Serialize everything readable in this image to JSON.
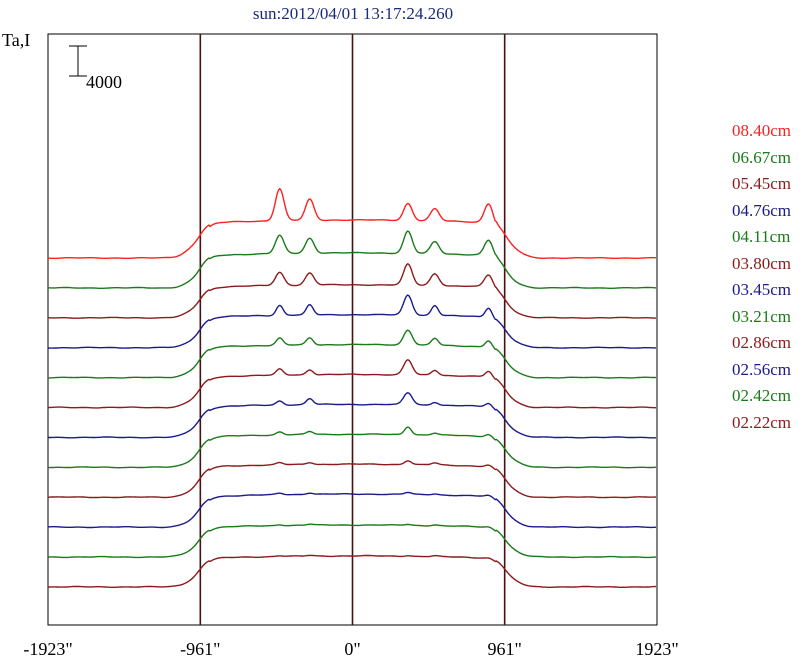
{
  "title": "sun:2012/04/01 13:17:24.260",
  "ylabel": "Ta,I",
  "chart_data": {
    "type": "line",
    "title": "sun:2012/04/01 13:17:24.260",
    "ylabel": "Ta,I",
    "x_ticks": [
      "-1923\"",
      "-961\"",
      "0\"",
      "961\"",
      "1923\""
    ],
    "x_tick_values": [
      -1923,
      -961,
      0,
      961,
      1923
    ],
    "xlim": [
      -1923,
      1923
    ],
    "scale_bar_label": "4000",
    "scale_bar_value": 4000,
    "vertical_lines_at": [
      -961,
      0,
      961
    ],
    "grid": false,
    "legend_position": "right",
    "series": [
      {
        "name": "08.40cm",
        "color": "#ff2020",
        "baseline_I": 3867,
        "limb_I": 1067,
        "disk_I": 5067,
        "peaks": [
          {
            "x": -460,
            "I": 4267
          },
          {
            "x": -270,
            "I": 2800
          },
          {
            "x": 350,
            "I": 2267
          },
          {
            "x": 520,
            "I": 1600
          },
          {
            "x": 860,
            "I": 2667
          }
        ]
      },
      {
        "name": "06.67cm",
        "color": "#1a7a1a",
        "baseline_I": 3600,
        "limb_I": 1067,
        "disk_I": 4667,
        "peaks": [
          {
            "x": -460,
            "I": 2400
          },
          {
            "x": -270,
            "I": 2000
          },
          {
            "x": 350,
            "I": 2933
          },
          {
            "x": 520,
            "I": 1600
          },
          {
            "x": 860,
            "I": 2133
          }
        ]
      },
      {
        "name": "05.45cm",
        "color": "#8b1a1a",
        "baseline_I": 3600,
        "limb_I": 1067,
        "disk_I": 4400,
        "peaks": [
          {
            "x": -460,
            "I": 1733
          },
          {
            "x": -270,
            "I": 1600
          },
          {
            "x": 350,
            "I": 2800
          },
          {
            "x": 520,
            "I": 1600
          },
          {
            "x": 860,
            "I": 1733
          }
        ]
      },
      {
        "name": "04.76cm",
        "color": "#1a1a8b",
        "baseline_I": 3600,
        "limb_I": 1067,
        "disk_I": 4400,
        "peaks": [
          {
            "x": -460,
            "I": 1333
          },
          {
            "x": -270,
            "I": 1333
          },
          {
            "x": 350,
            "I": 2667
          },
          {
            "x": 520,
            "I": 1333
          },
          {
            "x": 860,
            "I": 1333
          }
        ]
      },
      {
        "name": "04.11cm",
        "color": "#1a7a1a",
        "baseline_I": 3600,
        "limb_I": 1067,
        "disk_I": 4400,
        "peaks": [
          {
            "x": -460,
            "I": 933
          },
          {
            "x": -270,
            "I": 933
          },
          {
            "x": 350,
            "I": 2000
          },
          {
            "x": 520,
            "I": 933
          },
          {
            "x": 860,
            "I": 933
          }
        ]
      },
      {
        "name": "03.80cm",
        "color": "#8b1a1a",
        "baseline_I": 3600,
        "limb_I": 1067,
        "disk_I": 4400,
        "peaks": [
          {
            "x": -460,
            "I": 800
          },
          {
            "x": -270,
            "I": 667
          },
          {
            "x": 350,
            "I": 2000
          },
          {
            "x": 520,
            "I": 667
          },
          {
            "x": 860,
            "I": 800
          }
        ]
      },
      {
        "name": "03.45cm",
        "color": "#1a1a8b",
        "baseline_I": 3600,
        "limb_I": 1067,
        "disk_I": 4400,
        "peaks": [
          {
            "x": -460,
            "I": 533
          },
          {
            "x": -270,
            "I": 800
          },
          {
            "x": 350,
            "I": 1600
          },
          {
            "x": 520,
            "I": 400
          },
          {
            "x": 860,
            "I": 533
          }
        ]
      },
      {
        "name": "03.21cm",
        "color": "#1a7a1a",
        "baseline_I": 3600,
        "limb_I": 1067,
        "disk_I": 4400,
        "peaks": [
          {
            "x": -460,
            "I": 400
          },
          {
            "x": -270,
            "I": 400
          },
          {
            "x": 350,
            "I": 1067
          },
          {
            "x": 520,
            "I": 267
          },
          {
            "x": 860,
            "I": 400
          }
        ]
      },
      {
        "name": "02.86cm",
        "color": "#8b1a1a",
        "baseline_I": 3600,
        "limb_I": 1067,
        "disk_I": 4400,
        "peaks": [
          {
            "x": -460,
            "I": 267
          },
          {
            "x": -270,
            "I": 267
          },
          {
            "x": 350,
            "I": 533
          },
          {
            "x": 520,
            "I": 267
          },
          {
            "x": 860,
            "I": 267
          }
        ]
      },
      {
        "name": "02.56cm",
        "color": "#1a1a8b",
        "baseline_I": 3600,
        "limb_I": 1067,
        "disk_I": 4400,
        "peaks": [
          {
            "x": -460,
            "I": 200
          },
          {
            "x": -270,
            "I": 200
          },
          {
            "x": 350,
            "I": 267
          },
          {
            "x": 520,
            "I": 133
          },
          {
            "x": 860,
            "I": 200
          }
        ]
      },
      {
        "name": "02.42cm",
        "color": "#1a7a1a",
        "baseline_I": 3600,
        "limb_I": 1067,
        "disk_I": 4267,
        "peaks": [
          {
            "x": -460,
            "I": 133
          },
          {
            "x": -270,
            "I": 133
          },
          {
            "x": 350,
            "I": 133
          },
          {
            "x": 520,
            "I": 133
          },
          {
            "x": 860,
            "I": 133
          }
        ]
      },
      {
        "name": "02.22cm",
        "color": "#8b1a1a",
        "baseline_I": 3333,
        "limb_I": 1067,
        "disk_I": 4133,
        "peaks": [
          {
            "x": -460,
            "I": 100
          },
          {
            "x": -270,
            "I": 100
          },
          {
            "x": 350,
            "I": 100
          },
          {
            "x": 520,
            "I": 100
          },
          {
            "x": 860,
            "I": 100
          }
        ]
      }
    ]
  }
}
